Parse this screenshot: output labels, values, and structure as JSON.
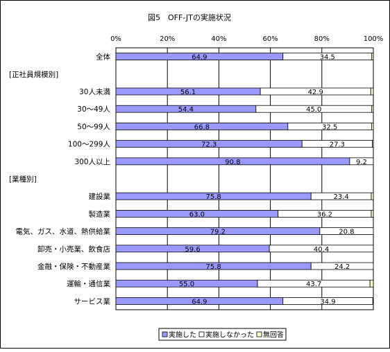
{
  "chart_data": {
    "type": "bar",
    "stacked": true,
    "orientation": "horizontal",
    "title": "図5　OFF-JTの実施状況",
    "xlim": [
      0,
      100
    ],
    "x_ticks": [
      "0%",
      "20%",
      "40%",
      "60%",
      "80%",
      "100%"
    ],
    "grid": true,
    "legend_position": "bottom",
    "categories": [
      "全体",
      "[正社員規模別]",
      "30人未満",
      "30～49人",
      "50～99人",
      "100～299人",
      "300人以上",
      "[業種別]",
      "建設業",
      "製造業",
      "電気、ガス、水道、熱供給業",
      "卸売・小売業、飲食店",
      "金融・保険・不動産業",
      "運輸・通信業",
      "サービス業"
    ],
    "series": [
      {
        "name": "実施した",
        "color": "#9999ff",
        "values": [
          64.9,
          null,
          56.1,
          54.4,
          66.8,
          72.3,
          90.8,
          null,
          75.8,
          63.0,
          79.2,
          59.6,
          75.8,
          55.0,
          64.9
        ],
        "labels": [
          "64.9",
          "",
          "56.1",
          "54.4",
          "66.8",
          "72.3",
          "90.8",
          "",
          "75.8",
          "63.0",
          "79.2",
          "59.6",
          "75.8",
          "55.0",
          "64.9"
        ]
      },
      {
        "name": "実施しなかった",
        "color": "#ffffff",
        "values": [
          34.5,
          null,
          42.9,
          45.0,
          32.5,
          27.3,
          9.2,
          null,
          23.4,
          36.2,
          20.8,
          40.4,
          24.2,
          43.7,
          34.9
        ],
        "labels": [
          "34.5",
          "",
          "42.9",
          "45.0",
          "32.5",
          "27.3",
          "9.2",
          "",
          "23.4",
          "36.2",
          "20.8",
          "40.4",
          "24.2",
          "43.7",
          "34.9"
        ]
      },
      {
        "name": "無回答",
        "color": "#ffffcc",
        "values": [
          0.6,
          null,
          1.0,
          0.6,
          0.7,
          0.4,
          0.0,
          null,
          0.8,
          0.8,
          0.0,
          0.0,
          0.0,
          1.3,
          0.2
        ]
      }
    ]
  }
}
